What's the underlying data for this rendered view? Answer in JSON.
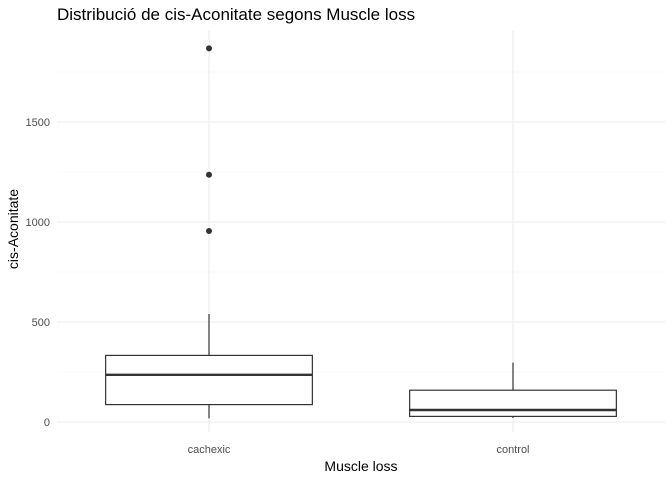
{
  "chart_data": {
    "type": "boxplot",
    "title": "Distribució de cis-Aconitate segons Muscle loss",
    "xlabel": "Muscle loss",
    "ylabel": "cis-Aconitate",
    "categories": [
      "cachexic",
      "control"
    ],
    "boxes": [
      {
        "category": "cachexic",
        "whisker_low": 18,
        "q1": 87,
        "median": 236,
        "q3": 333,
        "whisker_high": 540,
        "outliers": [
          955,
          1236,
          1868
        ]
      },
      {
        "category": "control",
        "whisker_low": 20,
        "q1": 28,
        "median": 60,
        "q3": 159,
        "whisker_high": 297,
        "outliers": []
      }
    ],
    "ylim": [
      -100,
      1960
    ],
    "yticks": [
      0,
      500,
      1000,
      1500
    ],
    "ytick_labels": [
      "0",
      "500",
      "1000",
      "1500"
    ],
    "grid": true,
    "legend": "none",
    "colors": {
      "box_fill": "#ffffff",
      "box_line": "#333333",
      "grid": "#ebebeb"
    }
  }
}
